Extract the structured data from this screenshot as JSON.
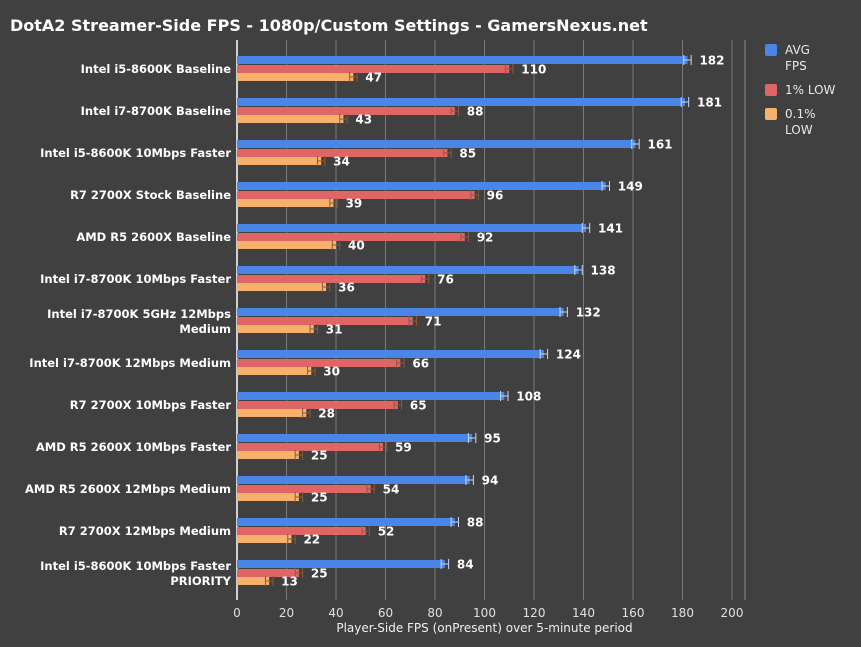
{
  "chart_data": {
    "type": "bar",
    "orientation": "horizontal",
    "title": "DotA2 Streamer-Side FPS - 1080p/Custom Settings - GamersNexus.net",
    "xlabel": "Player-Side FPS (onPresent) over 5-minute period",
    "ylabel": "",
    "xlim": [
      0,
      200
    ],
    "xticks": [
      0,
      20,
      40,
      60,
      80,
      100,
      120,
      140,
      160,
      180,
      200
    ],
    "grid": true,
    "legend_position": "right",
    "categories": [
      "Intel i5-8600K Baseline",
      "Intel i7-8700K Baseline",
      "Intel i5-8600K 10Mbps Faster",
      "R7 2700X Stock Baseline",
      "AMD R5 2600X Baseline",
      "Intel i7-8700K 10Mbps Faster",
      "Intel i7-8700K 5GHz 12Mbps\nMedium",
      "Intel i7-8700K 12Mbps Medium",
      "R7 2700X 10Mbps Faster",
      "AMD R5 2600X 10Mbps Faster",
      "AMD R5 2600X 12Mbps Medium",
      "R7 2700X 12Mbps Medium",
      "Intel i5-8600K 10Mbps Faster\nPRIORITY"
    ],
    "series": [
      {
        "name": "AVG FPS",
        "color": "#4a86e8",
        "values": [
          182,
          181,
          161,
          149,
          141,
          138,
          132,
          124,
          108,
          95,
          94,
          88,
          84
        ]
      },
      {
        "name": "1% LOW",
        "color": "#e06666",
        "values": [
          110,
          88,
          85,
          96,
          92,
          76,
          71,
          66,
          65,
          59,
          54,
          52,
          25
        ]
      },
      {
        "name": "0.1% LOW",
        "color": "#f6b26b",
        "values": [
          47,
          43,
          34,
          39,
          40,
          36,
          31,
          30,
          28,
          25,
          25,
          22,
          13
        ]
      }
    ]
  }
}
